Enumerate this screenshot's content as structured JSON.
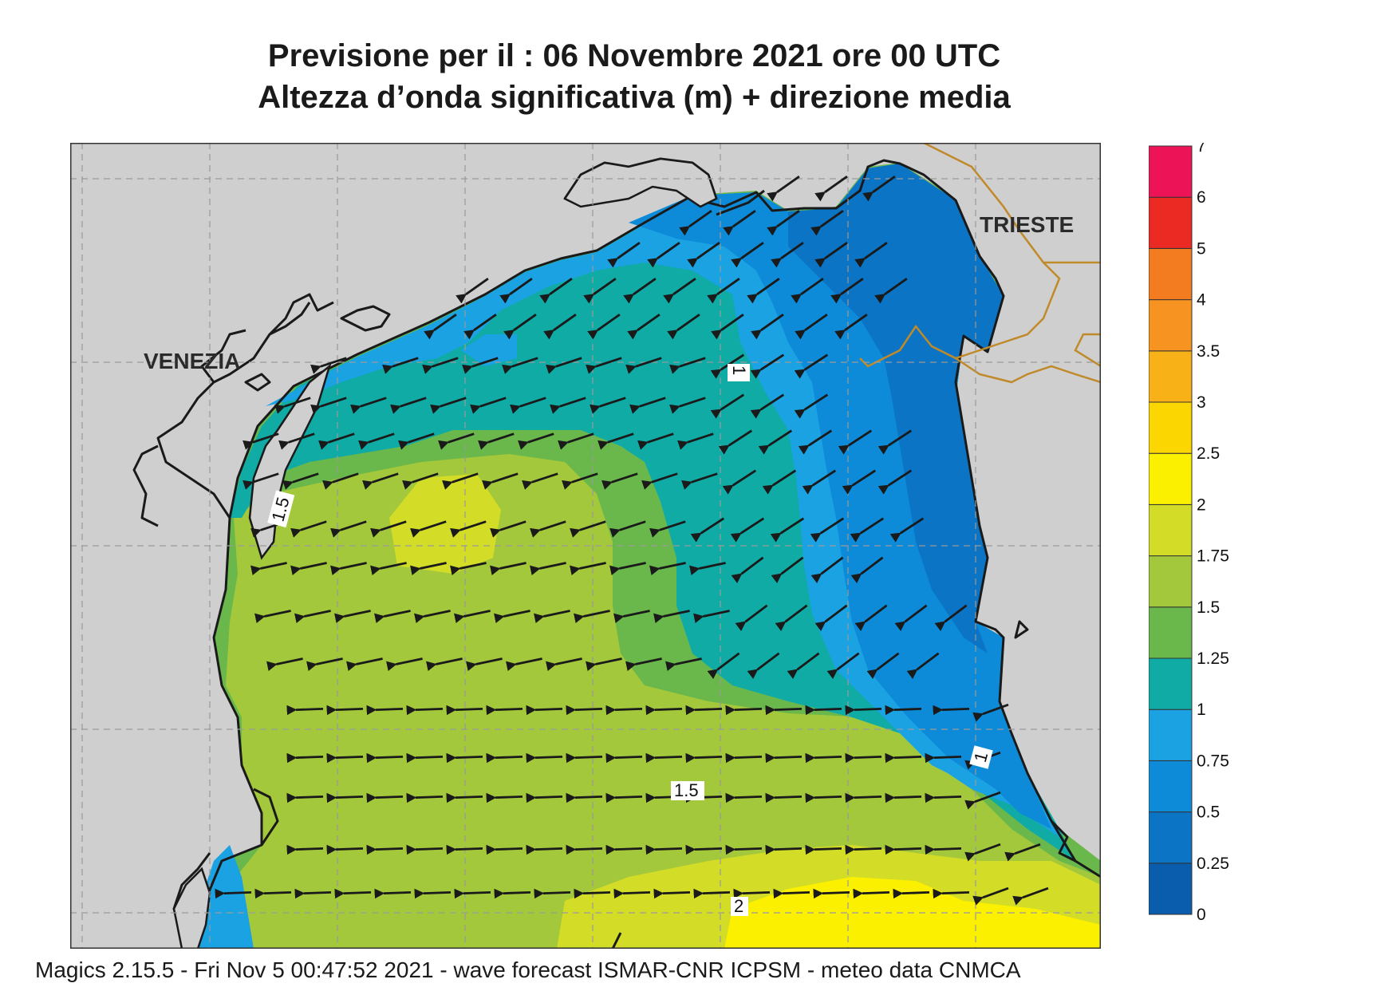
{
  "header": {
    "title_line1": "Previsione per il  :  06 Novembre  2021   ore 00 UTC",
    "title_line2": "Altezza d’onda significativa (m) + direzione media"
  },
  "map": {
    "cities": [
      "VENEZIA",
      "TRIESTE"
    ],
    "contour_labels": [
      "1",
      "1.5",
      "1.5",
      "1",
      "2"
    ],
    "colors": {
      "land": "#cfcfcf",
      "border": "#c08a2a",
      "coast": "#1a1a1a"
    },
    "wave_direction": "towards west-southwest"
  },
  "legend": {
    "levels": [
      "0",
      "0.25",
      "0.5",
      "0.75",
      "1",
      "1.25",
      "1.5",
      "1.75",
      "2",
      "2.5",
      "3",
      "3.5",
      "4",
      "5",
      "6",
      "7"
    ],
    "colors": [
      "#0a5cad",
      "#0b74c4",
      "#0e8bd8",
      "#1aa2e3",
      "#11aba6",
      "#6ab84b",
      "#a4c83b",
      "#d3dc26",
      "#faf000",
      "#fbd600",
      "#f8b217",
      "#f79421",
      "#f47c20",
      "#ec2a24",
      "#ec1457"
    ]
  },
  "footer": {
    "text": "Magics 2.15.5 - Fri Nov  5 00:47:52 2021 - wave forecast  ISMAR-CNR  ICPSM - meteo data   CNMCA"
  }
}
